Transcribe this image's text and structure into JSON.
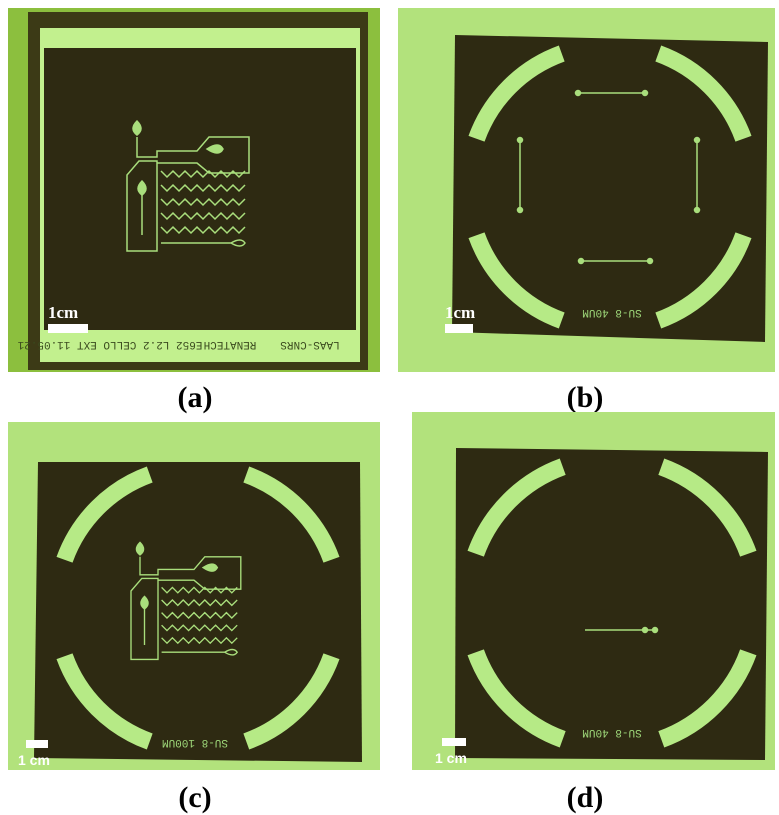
{
  "panels": [
    {
      "label": "(a)",
      "scale": "1cm",
      "mask_texts": [
        "E652 L2.2 CELLO EXT 11.05.21",
        "RENATECH",
        "LAAS-CNRS"
      ]
    },
    {
      "label": "(b)",
      "scale": "1cm",
      "mask_texts": [
        "SU-8 40UM"
      ]
    },
    {
      "label": "(c)",
      "scale": "1 cm",
      "mask_texts": [
        "SU-8 100UM"
      ]
    },
    {
      "label": "(d)",
      "scale": "1 cm",
      "mask_texts": [
        "SU-8 40UM"
      ]
    }
  ]
}
